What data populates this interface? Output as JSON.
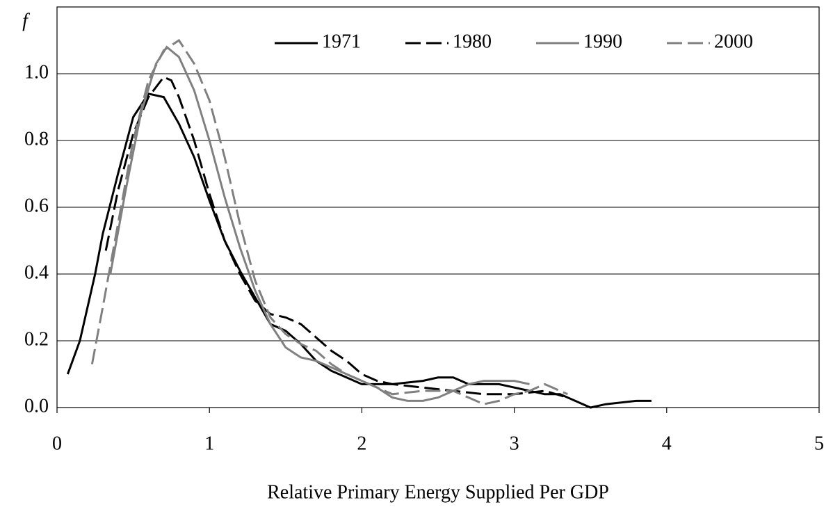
{
  "chart_data": {
    "type": "line",
    "x_label": "Relative Primary Energy Supplied Per GDP",
    "y_label": "f",
    "xlim": [
      0,
      5
    ],
    "xticks": [
      0,
      1,
      2,
      3,
      4,
      5
    ],
    "ylim": [
      0,
      1.2
    ],
    "yticks": [
      {
        "value": 0,
        "label": "0.0"
      },
      {
        "value": 0.2,
        "label": "0.2"
      },
      {
        "value": 0.4,
        "label": "0.4"
      },
      {
        "value": 0.6,
        "label": "0.6"
      },
      {
        "value": 0.8,
        "label": "0.8"
      },
      {
        "value": 1.0,
        "label": "1.0"
      }
    ],
    "grid": true,
    "legend": "top-right",
    "series": [
      {
        "name": "1971",
        "color": "#000000",
        "dashed": false,
        "x": [
          0.07,
          0.15,
          0.25,
          0.3,
          0.4,
          0.5,
          0.6,
          0.7,
          0.8,
          0.9,
          1.0,
          1.1,
          1.2,
          1.3,
          1.4,
          1.5,
          1.6,
          1.7,
          1.8,
          1.9,
          2.0,
          2.2,
          2.4,
          2.5,
          2.6,
          2.7,
          2.9,
          3.0,
          3.2,
          3.3,
          3.4,
          3.5,
          3.6,
          3.8,
          3.9
        ],
        "values": [
          0.1,
          0.2,
          0.4,
          0.52,
          0.7,
          0.87,
          0.94,
          0.93,
          0.85,
          0.75,
          0.62,
          0.5,
          0.41,
          0.33,
          0.25,
          0.23,
          0.19,
          0.14,
          0.11,
          0.09,
          0.07,
          0.07,
          0.08,
          0.09,
          0.09,
          0.07,
          0.07,
          0.06,
          0.04,
          0.04,
          0.02,
          0.0,
          0.01,
          0.02,
          0.02
        ]
      },
      {
        "name": "1980",
        "color": "#000000",
        "dashed": true,
        "x": [
          0.32,
          0.4,
          0.5,
          0.6,
          0.7,
          0.75,
          0.8,
          0.9,
          1.0,
          1.1,
          1.2,
          1.3,
          1.4,
          1.5,
          1.6,
          1.7,
          1.8,
          1.9,
          2.0,
          2.1,
          2.2,
          2.4,
          2.6,
          2.8,
          3.0,
          3.2,
          3.35
        ],
        "values": [
          0.47,
          0.65,
          0.82,
          0.93,
          0.99,
          0.98,
          0.93,
          0.8,
          0.64,
          0.5,
          0.4,
          0.32,
          0.28,
          0.27,
          0.25,
          0.21,
          0.17,
          0.14,
          0.1,
          0.08,
          0.07,
          0.06,
          0.05,
          0.04,
          0.04,
          0.05,
          0.03
        ]
      },
      {
        "name": "1990",
        "color": "#808080",
        "dashed": false,
        "x": [
          0.35,
          0.45,
          0.55,
          0.65,
          0.72,
          0.8,
          0.9,
          1.0,
          1.1,
          1.2,
          1.3,
          1.4,
          1.5,
          1.6,
          1.7,
          1.8,
          1.9,
          2.0,
          2.1,
          2.2,
          2.3,
          2.4,
          2.5,
          2.6,
          2.7,
          2.8,
          2.9,
          3.0,
          3.1
        ],
        "values": [
          0.4,
          0.65,
          0.88,
          1.03,
          1.08,
          1.05,
          0.95,
          0.8,
          0.63,
          0.48,
          0.35,
          0.25,
          0.18,
          0.15,
          0.14,
          0.12,
          0.1,
          0.08,
          0.06,
          0.03,
          0.02,
          0.02,
          0.03,
          0.05,
          0.07,
          0.08,
          0.08,
          0.08,
          0.07
        ]
      },
      {
        "name": "2000",
        "color": "#808080",
        "dashed": true,
        "x": [
          0.23,
          0.3,
          0.4,
          0.5,
          0.6,
          0.7,
          0.8,
          0.9,
          1.0,
          1.1,
          1.2,
          1.3,
          1.4,
          1.5,
          1.6,
          1.7,
          1.8,
          1.9,
          2.0,
          2.1,
          2.2,
          2.4,
          2.6,
          2.7,
          2.8,
          2.9,
          3.0,
          3.1,
          3.2,
          3.3,
          3.35
        ],
        "values": [
          0.13,
          0.3,
          0.55,
          0.8,
          0.98,
          1.07,
          1.1,
          1.03,
          0.92,
          0.75,
          0.55,
          0.38,
          0.27,
          0.22,
          0.19,
          0.17,
          0.13,
          0.1,
          0.08,
          0.06,
          0.04,
          0.05,
          0.05,
          0.03,
          0.01,
          0.02,
          0.04,
          0.05,
          0.07,
          0.05,
          0.04
        ]
      }
    ]
  }
}
